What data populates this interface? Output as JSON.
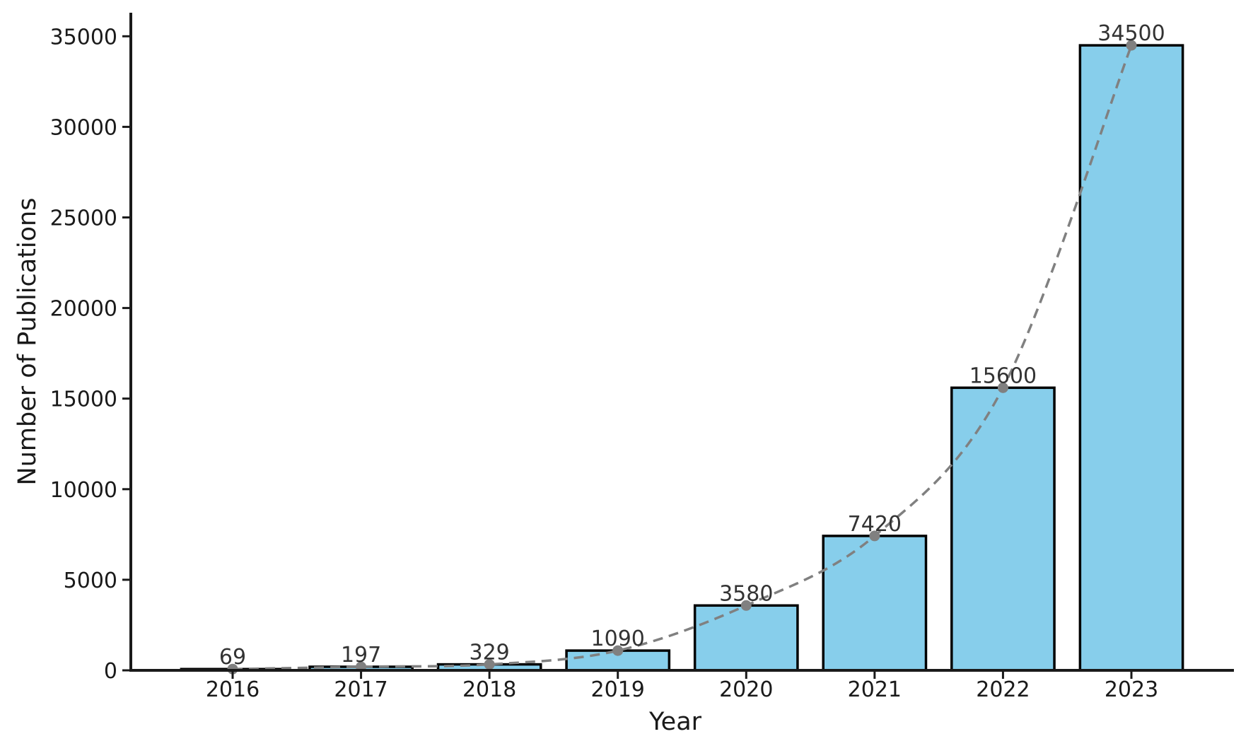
{
  "chart_data": {
    "type": "bar",
    "categories": [
      "2016",
      "2017",
      "2018",
      "2019",
      "2020",
      "2021",
      "2022",
      "2023"
    ],
    "values": [
      69,
      197,
      329,
      1090,
      3580,
      7420,
      15600,
      34500
    ],
    "data_labels": [
      "69",
      "197",
      "329",
      "1090",
      "3580",
      "7420",
      "15600",
      "34500"
    ],
    "overlay": {
      "type": "line",
      "style": "dashed",
      "markers": "circle",
      "values": [
        69,
        197,
        329,
        1090,
        3580,
        7420,
        15600,
        34500
      ]
    },
    "title": "",
    "xlabel": "Year",
    "ylabel": "Number of Publications",
    "ylim": [
      0,
      36300
    ],
    "yticks": [
      0,
      5000,
      10000,
      15000,
      20000,
      25000,
      30000,
      35000
    ],
    "ytick_labels": [
      "0",
      "5000",
      "10000",
      "15000",
      "20000",
      "25000",
      "30000",
      "35000"
    ],
    "grid": false,
    "legend": "none",
    "colors": {
      "bar_fill": "#87CEEB",
      "bar_edge": "#000000",
      "line": "#808080",
      "axis": "#1a1a1a",
      "text": "#1a1a1a"
    }
  }
}
